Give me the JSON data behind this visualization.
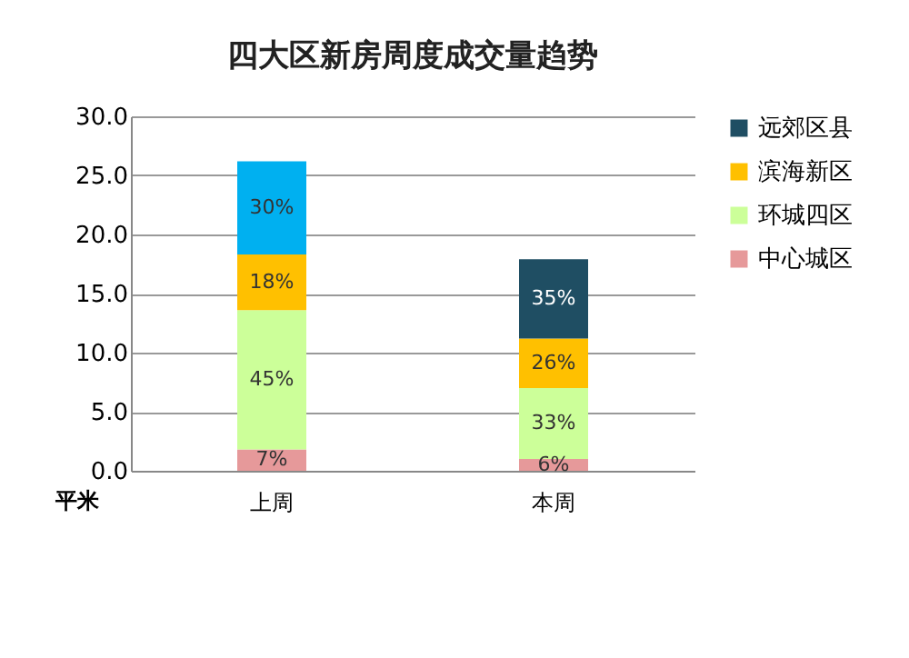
{
  "chart_data": {
    "type": "bar",
    "title": "四大区新房周度成交量趋势",
    "ylabel": "平米",
    "categories": [
      "上周",
      "本周"
    ],
    "stacked": true,
    "series": [
      {
        "name": "中心城区",
        "color": "#e6999a",
        "values": [
          1.8,
          1.0
        ]
      },
      {
        "name": "环城四区",
        "color": "#ccff99",
        "values": [
          11.8,
          6.0
        ]
      },
      {
        "name": "滨海新区",
        "color": "#ffc000",
        "values": [
          4.7,
          4.2
        ]
      },
      {
        "name": "远郊区县",
        "color": "#1f4e63",
        "colors": [
          "#00b0f0",
          "#1f4e63"
        ],
        "values": [
          7.9,
          6.7
        ]
      }
    ],
    "annotations": [
      "7%",
      "6%",
      "45%",
      "33%",
      "18%",
      "26%",
      "30%",
      "35%"
    ],
    "ylim": [
      0,
      30
    ],
    "yticks": [
      {
        "value": 0,
        "label": "0.0"
      },
      {
        "value": 5,
        "label": "5.0"
      },
      {
        "value": 10,
        "label": "10.0"
      },
      {
        "value": 15,
        "label": "15.0"
      },
      {
        "value": 20,
        "label": "20.0"
      },
      {
        "value": 25,
        "label": "25.0"
      },
      {
        "value": 30,
        "label": "30.0"
      }
    ],
    "grid": "y",
    "legend": "right"
  }
}
